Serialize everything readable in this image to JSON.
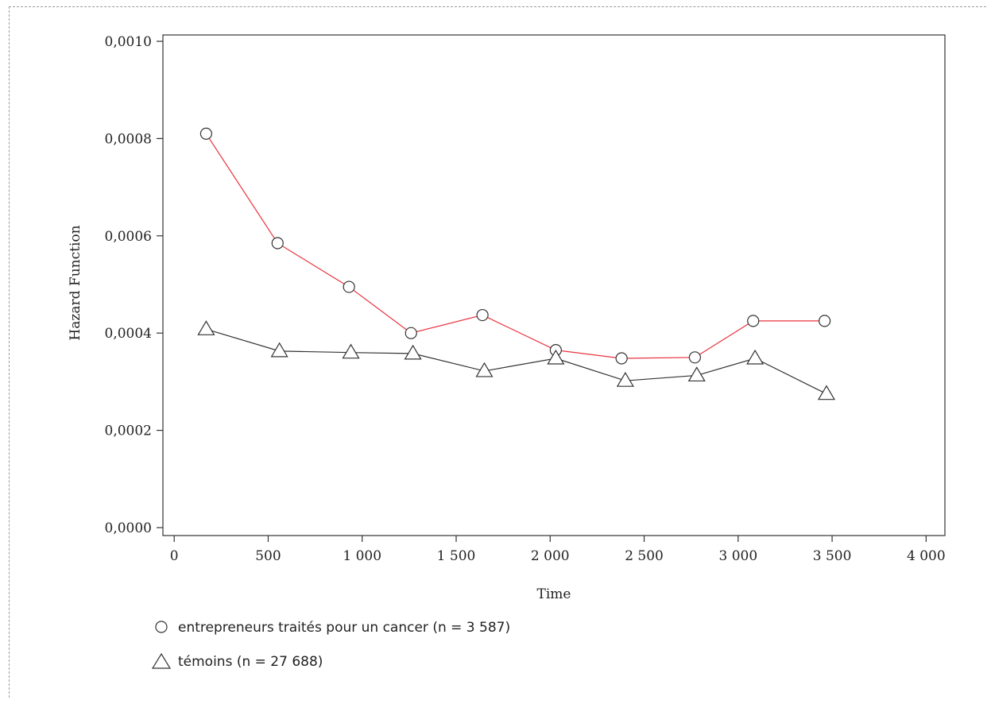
{
  "chart_data": {
    "type": "line",
    "title": "",
    "xlabel": "Time",
    "ylabel": "Hazard Function",
    "xlim": [
      -60,
      4100
    ],
    "ylim": [
      0,
      0.001
    ],
    "x_ticks": [
      0,
      500,
      1000,
      1500,
      2000,
      2500,
      3000,
      3500,
      4000
    ],
    "x_tick_labels": [
      "0",
      "500",
      "1 000",
      "1 500",
      "2 000",
      "2 500",
      "3 000",
      "3 500",
      "4 000"
    ],
    "y_ticks": [
      0,
      0.0002,
      0.0004,
      0.0006,
      0.0008,
      0.001
    ],
    "y_tick_labels": [
      "0,0000",
      "0,0002",
      "0,0004",
      "0,0006",
      "0,0008",
      "0,0010"
    ],
    "grid": false,
    "legend_position": "bottom-left",
    "series": [
      {
        "name": "entrepreneurs traités pour un cancer (n = 3 587)",
        "marker": "circle",
        "color": "#e8323c",
        "x": [
          170,
          550,
          930,
          1260,
          1640,
          2030,
          2380,
          2770,
          3080,
          3460
        ],
        "y": [
          0.00081,
          0.000585,
          0.000495,
          0.0004,
          0.000437,
          0.000365,
          0.000348,
          0.00035,
          0.000425,
          0.000425
        ]
      },
      {
        "name": "témoins (n = 27 688)",
        "marker": "triangle",
        "color": "#333333",
        "x": [
          170,
          560,
          940,
          1270,
          1650,
          2030,
          2400,
          2780,
          3090,
          3470
        ],
        "y": [
          0.000408,
          0.000363,
          0.00036,
          0.000358,
          0.000322,
          0.000348,
          0.000302,
          0.000313,
          0.000348,
          0.000275
        ]
      }
    ]
  }
}
